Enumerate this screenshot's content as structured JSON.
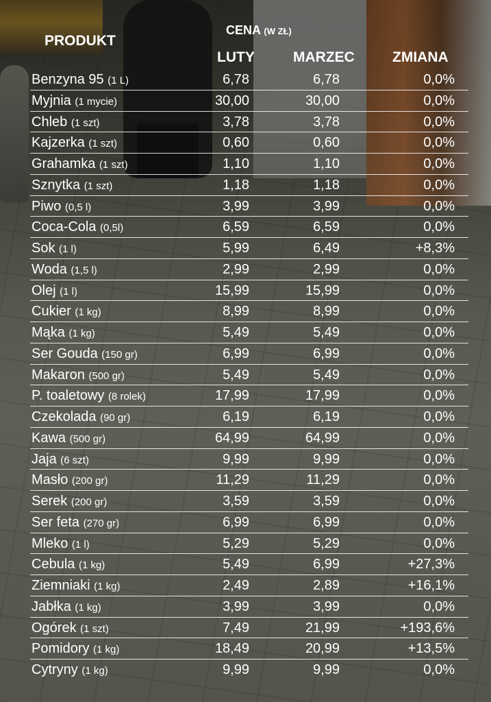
{
  "header": {
    "produkt": "PRODUKT",
    "cena": "CENA",
    "cena_unit": "(W ZŁ)",
    "luty": "LUTY",
    "marzec": "MARZEC",
    "zmiana": "ZMIANA"
  },
  "chart_data": {
    "type": "table",
    "columns": [
      "PRODUKT",
      "LUTY",
      "MARZEC",
      "ZMIANA"
    ],
    "rows": [
      {
        "name": "Benzyna 95",
        "unit": "(1 L)",
        "luty": "6,78",
        "marzec": "6,78",
        "zmiana": "0,0%"
      },
      {
        "name": "Myjnia",
        "unit": "(1 mycie)",
        "luty": "30,00",
        "marzec": "30,00",
        "zmiana": "0,0%"
      },
      {
        "name": "Chleb",
        "unit": "(1 szt)",
        "luty": "3,78",
        "marzec": "3,78",
        "zmiana": "0,0%"
      },
      {
        "name": "Kajzerka",
        "unit": "(1 szt)",
        "luty": "0,60",
        "marzec": "0,60",
        "zmiana": "0,0%"
      },
      {
        "name": "Grahamka",
        "unit": "(1 szt)",
        "luty": "1,10",
        "marzec": "1,10",
        "zmiana": "0,0%"
      },
      {
        "name": "Sznytka",
        "unit": "(1 szt)",
        "luty": "1,18",
        "marzec": "1,18",
        "zmiana": "0,0%"
      },
      {
        "name": "Piwo",
        "unit": "(0,5 l)",
        "luty": "3,99",
        "marzec": "3,99",
        "zmiana": "0,0%"
      },
      {
        "name": "Coca-Cola",
        "unit": "(0,5l)",
        "luty": "6,59",
        "marzec": "6,59",
        "zmiana": "0,0%"
      },
      {
        "name": "Sok",
        "unit": "(1 l)",
        "luty": "5,99",
        "marzec": "6,49",
        "zmiana": "+8,3%"
      },
      {
        "name": "Woda",
        "unit": "(1,5 l)",
        "luty": "2,99",
        "marzec": "2,99",
        "zmiana": "0,0%"
      },
      {
        "name": "Olej",
        "unit": "(1 l)",
        "luty": "15,99",
        "marzec": "15,99",
        "zmiana": "0,0%"
      },
      {
        "name": "Cukier",
        "unit": "(1 kg)",
        "luty": "8,99",
        "marzec": "8,99",
        "zmiana": "0,0%"
      },
      {
        "name": "Mąka",
        "unit": "(1 kg)",
        "luty": "5,49",
        "marzec": "5,49",
        "zmiana": "0,0%"
      },
      {
        "name": "Ser Gouda",
        "unit": "(150 gr)",
        "luty": "6,99",
        "marzec": "6,99",
        "zmiana": "0,0%"
      },
      {
        "name": "Makaron",
        "unit": "(500 gr)",
        "luty": "5,49",
        "marzec": "5,49",
        "zmiana": "0,0%"
      },
      {
        "name": "P. toaletowy",
        "unit": "(8 rolek)",
        "luty": "17,99",
        "marzec": "17,99",
        "zmiana": "0,0%"
      },
      {
        "name": "Czekolada",
        "unit": "(90 gr)",
        "luty": "6,19",
        "marzec": "6,19",
        "zmiana": "0,0%"
      },
      {
        "name": "Kawa",
        "unit": "(500 gr)",
        "luty": "64,99",
        "marzec": "64,99",
        "zmiana": "0,0%"
      },
      {
        "name": "Jaja",
        "unit": "(6 szt)",
        "luty": "9,99",
        "marzec": "9,99",
        "zmiana": "0,0%"
      },
      {
        "name": "Masło",
        "unit": "(200 gr)",
        "luty": "11,29",
        "marzec": "11,29",
        "zmiana": "0,0%"
      },
      {
        "name": "Serek",
        "unit": "(200 gr)",
        "luty": "3,59",
        "marzec": "3,59",
        "zmiana": "0,0%"
      },
      {
        "name": "Ser feta",
        "unit": "(270 gr)",
        "luty": "6,99",
        "marzec": "6,99",
        "zmiana": "0,0%"
      },
      {
        "name": "Mleko",
        "unit": "(1 l)",
        "luty": "5,29",
        "marzec": "5,29",
        "zmiana": "0,0%"
      },
      {
        "name": "Cebula",
        "unit": "(1 kg)",
        "luty": "5,49",
        "marzec": "6,99",
        "zmiana": "+27,3%"
      },
      {
        "name": "Ziemniaki",
        "unit": "(1 kg)",
        "luty": "2,49",
        "marzec": "2,89",
        "zmiana": "+16,1%"
      },
      {
        "name": "Jabłka",
        "unit": "(1 kg)",
        "luty": "3,99",
        "marzec": "3,99",
        "zmiana": "0,0%"
      },
      {
        "name": "Ogórek",
        "unit": "(1 szt)",
        "luty": "7,49",
        "marzec": "21,99",
        "zmiana": "+193,6%"
      },
      {
        "name": "Pomidory",
        "unit": "(1 kg)",
        "luty": "18,49",
        "marzec": "20,99",
        "zmiana": "+13,5%"
      },
      {
        "name": "Cytryny",
        "unit": "(1 kg)",
        "luty": "9,99",
        "marzec": "9,99",
        "zmiana": "0,0%"
      }
    ]
  }
}
